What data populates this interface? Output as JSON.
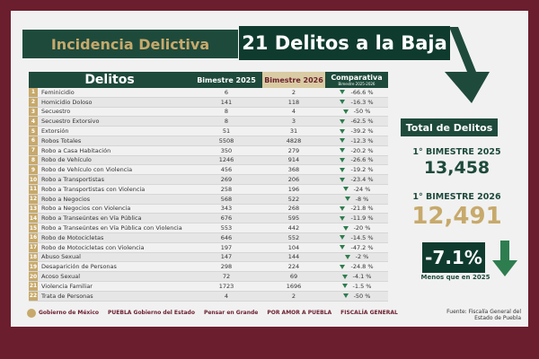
{
  "header": {
    "left_title": "Incidencia Delictiva",
    "right_title": "21 Delitos a la Baja"
  },
  "table": {
    "col_delitos": "Delitos",
    "col_b25": "Bimestre 2025",
    "col_b26": "Bimestre 2026",
    "col_comp": "Comparativa",
    "col_comp_sub": "Bimestre 2025-2026",
    "rows": [
      {
        "n": "1",
        "name": "Feminicidio",
        "b25": "6",
        "b26": "2",
        "cmp": "-66.6 %"
      },
      {
        "n": "2",
        "name": "Homicidio Doloso",
        "b25": "141",
        "b26": "118",
        "cmp": "-16.3 %"
      },
      {
        "n": "3",
        "name": "Secuestro",
        "b25": "8",
        "b26": "4",
        "cmp": "-50 %"
      },
      {
        "n": "4",
        "name": "Secuestro Extorsivo",
        "b25": "8",
        "b26": "3",
        "cmp": "-62.5 %"
      },
      {
        "n": "5",
        "name": "Extorsión",
        "b25": "51",
        "b26": "31",
        "cmp": "-39.2 %"
      },
      {
        "n": "6",
        "name": "Robos Totales",
        "b25": "5508",
        "b26": "4828",
        "cmp": "-12.3 %"
      },
      {
        "n": "7",
        "name": "Robo a Casa Habitación",
        "b25": "350",
        "b26": "279",
        "cmp": "-20.2 %"
      },
      {
        "n": "8",
        "name": "Robo de Vehículo",
        "b25": "1246",
        "b26": "914",
        "cmp": "-26.6 %"
      },
      {
        "n": "9",
        "name": "Robo de Vehículo con Violencia",
        "b25": "456",
        "b26": "368",
        "cmp": "-19.2 %"
      },
      {
        "n": "10",
        "name": "Robo a Transportistas",
        "b25": "269",
        "b26": "206",
        "cmp": "-23.4 %"
      },
      {
        "n": "11",
        "name": "Robo a Transportistas con Violencia",
        "b25": "258",
        "b26": "196",
        "cmp": "-24 %"
      },
      {
        "n": "12",
        "name": "Robo a Negocios",
        "b25": "568",
        "b26": "522",
        "cmp": "-8 %"
      },
      {
        "n": "13",
        "name": "Robo a Negocios con Violencia",
        "b25": "343",
        "b26": "268",
        "cmp": "-21.8 %"
      },
      {
        "n": "14",
        "name": "Robo a Transeúntes en Vía Pública",
        "b25": "676",
        "b26": "595",
        "cmp": "-11.9 %"
      },
      {
        "n": "15",
        "name": "Robo a Transeúntes en Vía Pública con Violencia",
        "b25": "553",
        "b26": "442",
        "cmp": "-20 %"
      },
      {
        "n": "16",
        "name": "Robo de Motocicletas",
        "b25": "646",
        "b26": "552",
        "cmp": "-14.5 %"
      },
      {
        "n": "17",
        "name": "Robo de Motocicletas con Violencia",
        "b25": "197",
        "b26": "104",
        "cmp": "-47.2 %"
      },
      {
        "n": "18",
        "name": "Abuso Sexual",
        "b25": "147",
        "b26": "144",
        "cmp": "-2 %"
      },
      {
        "n": "19",
        "name": "Desaparición de Personas",
        "b25": "298",
        "b26": "224",
        "cmp": "-24.8 %"
      },
      {
        "n": "20",
        "name": "Acoso Sexual",
        "b25": "72",
        "b26": "69",
        "cmp": "-4.1 %"
      },
      {
        "n": "21",
        "name": "Violencia Familiar",
        "b25": "1723",
        "b26": "1696",
        "cmp": "-1.5 %"
      },
      {
        "n": "22",
        "name": "Trata de Personas",
        "b25": "4",
        "b26": "2",
        "cmp": "-50 %"
      }
    ]
  },
  "summary": {
    "title": "Total de Delitos",
    "label_2025": "1° BIMESTRE 2025",
    "value_2025": "13,458",
    "label_2026": "1° BIMESTRE 2026",
    "value_2026": "12,491",
    "pct": "-7.1%",
    "pct_sub": "Menos que en 2025"
  },
  "footer": {
    "logo1": "Gobierno de México",
    "logo2": "PUEBLA Gobierno del Estado",
    "logo3": "Pensar en Grande",
    "logo4": "POR AMOR A PUEBLA",
    "logo5": "FISCALÍA GENERAL",
    "source": "Fuente: Fiscalía General del Estado de Puebla"
  },
  "colors": {
    "maroon": "#6b1e2e",
    "dark_green": "#1e4a3c",
    "gold": "#c7a96b",
    "down_green": "#2e7d4f"
  }
}
